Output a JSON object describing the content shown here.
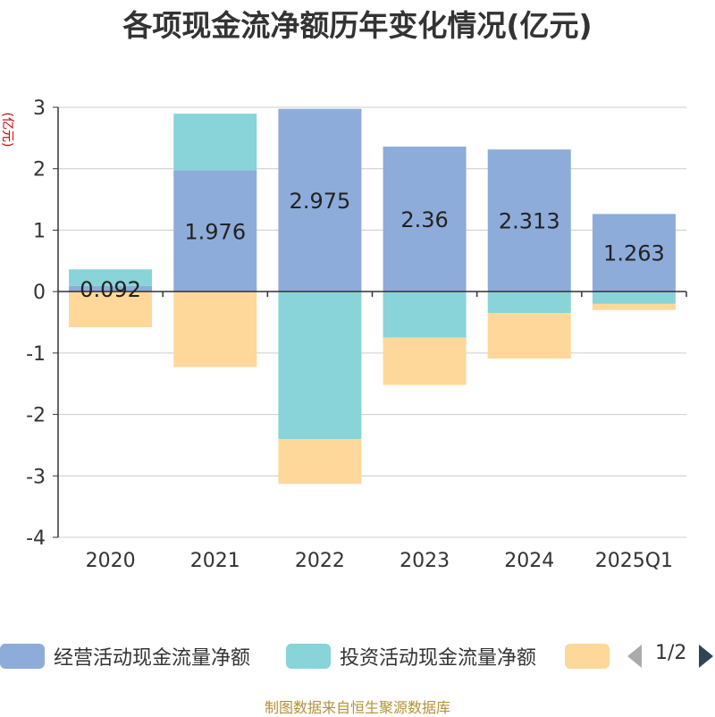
{
  "chart_data": {
    "type": "bar",
    "title": "各项现金流净额历年变化情况(亿元)",
    "ylabel": "(亿元)",
    "categories": [
      "2020",
      "2021",
      "2022",
      "2023",
      "2024",
      "2025Q1"
    ],
    "ylim": [
      -4,
      3
    ],
    "yticks": [
      3,
      2,
      1,
      0,
      -1,
      -2,
      -3,
      -4
    ],
    "grid": true,
    "stacked": true,
    "series": [
      {
        "name": "经营活动现金流量净额",
        "color": "#8eacd9",
        "values": [
          0.092,
          1.976,
          2.975,
          2.36,
          2.313,
          1.263
        ],
        "labels": [
          "0.092",
          "1.976",
          "2.975",
          "2.36",
          "2.313",
          "1.263"
        ]
      },
      {
        "name": "投资活动现金流量净额",
        "color": "#88d4d8",
        "values": [
          0.27,
          0.92,
          -2.4,
          -0.75,
          -0.35,
          -0.2
        ]
      },
      {
        "name": "",
        "color": "#fdd89a",
        "values": [
          -0.58,
          -1.23,
          -0.73,
          -0.77,
          -0.74,
          -0.1
        ]
      }
    ],
    "legend": {
      "position": "bottom",
      "page": "1/2"
    },
    "source": "制图数据来自恒生聚源数据库"
  }
}
